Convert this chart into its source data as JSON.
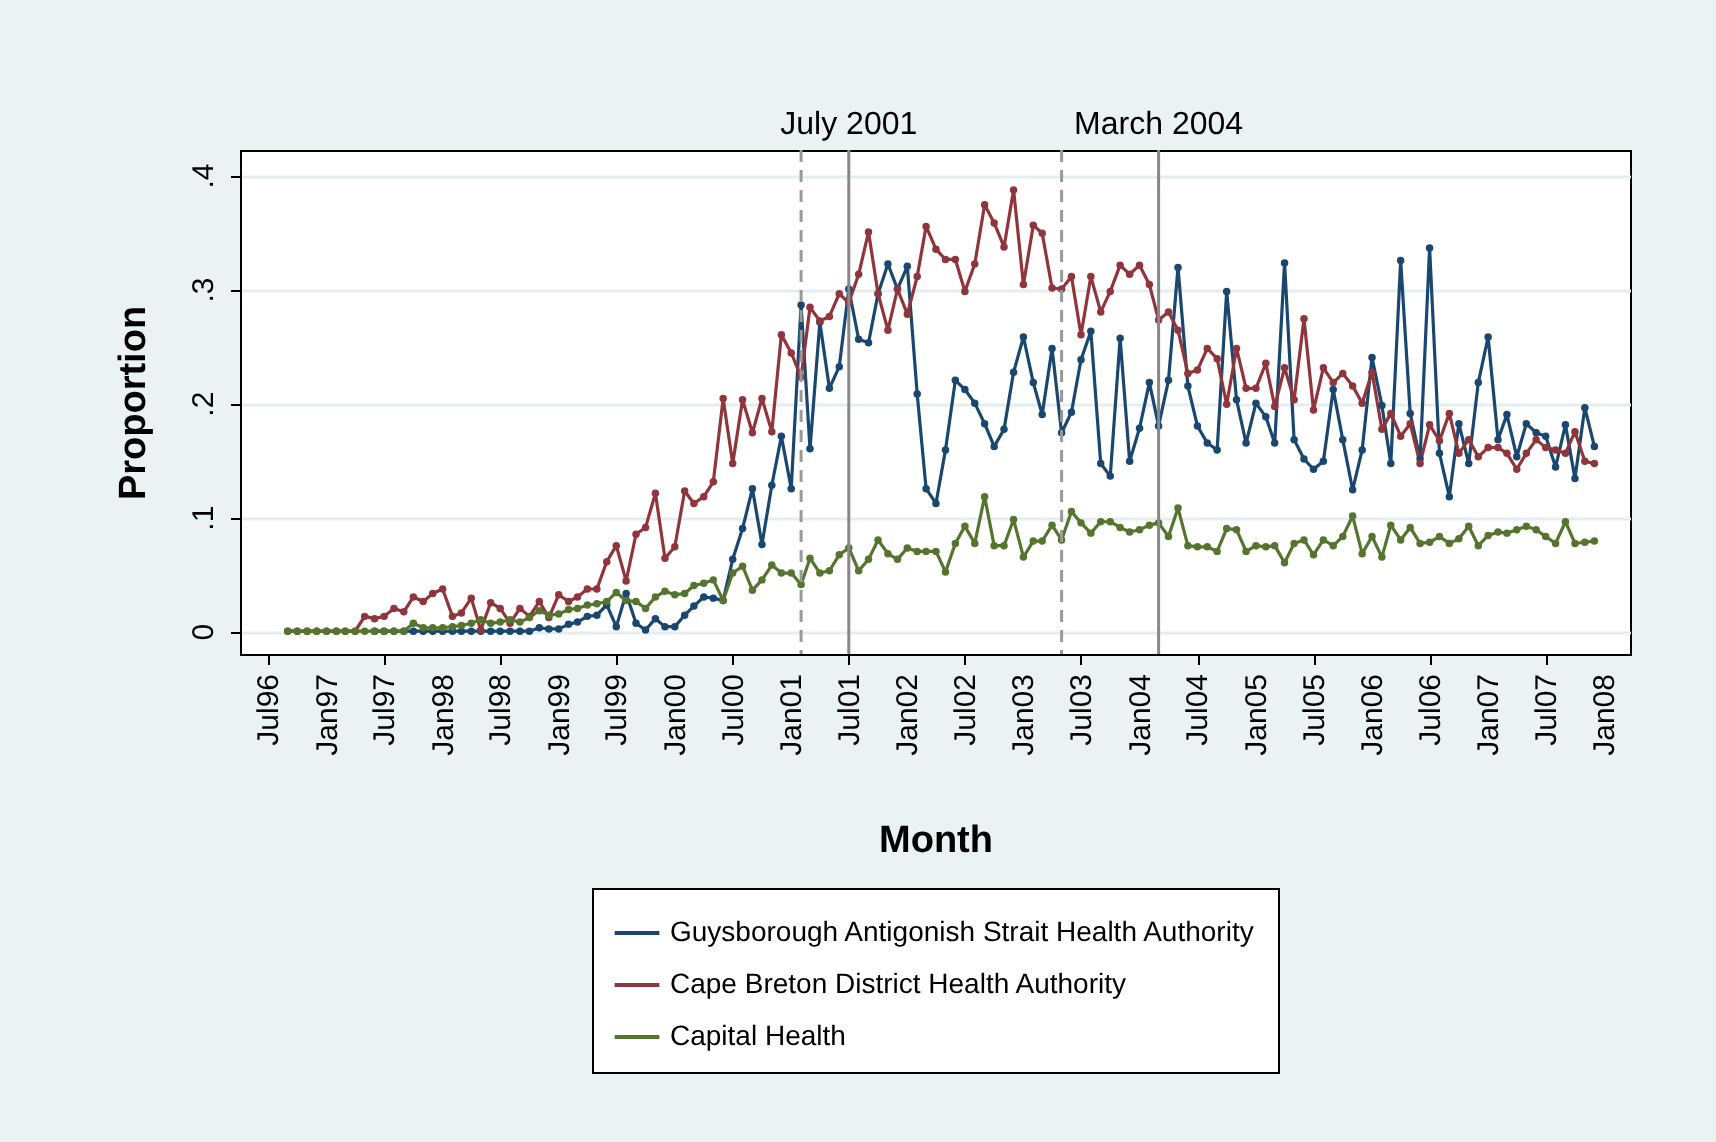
{
  "chart_data": {
    "type": "line",
    "xlabel": "Month",
    "ylabel": "Proportion",
    "x": [
      "1996-09",
      "1996-10",
      "1996-11",
      "1996-12",
      "1997-01",
      "1997-02",
      "1997-03",
      "1997-04",
      "1997-05",
      "1997-06",
      "1997-07",
      "1997-08",
      "1997-09",
      "1997-10",
      "1997-11",
      "1997-12",
      "1998-01",
      "1998-02",
      "1998-03",
      "1998-04",
      "1998-05",
      "1998-06",
      "1998-07",
      "1998-08",
      "1998-09",
      "1998-10",
      "1998-11",
      "1998-12",
      "1999-01",
      "1999-02",
      "1999-03",
      "1999-04",
      "1999-05",
      "1999-06",
      "1999-07",
      "1999-08",
      "1999-09",
      "1999-10",
      "1999-11",
      "1999-12",
      "2000-01",
      "2000-02",
      "2000-03",
      "2000-04",
      "2000-05",
      "2000-06",
      "2000-07",
      "2000-08",
      "2000-09",
      "2000-10",
      "2000-11",
      "2000-12",
      "2001-01",
      "2001-02",
      "2001-03",
      "2001-04",
      "2001-05",
      "2001-06",
      "2001-07",
      "2001-08",
      "2001-09",
      "2001-10",
      "2001-11",
      "2001-12",
      "2002-01",
      "2002-02",
      "2002-03",
      "2002-04",
      "2002-05",
      "2002-06",
      "2002-07",
      "2002-08",
      "2002-09",
      "2002-10",
      "2002-11",
      "2002-12",
      "2003-01",
      "2003-02",
      "2003-03",
      "2003-04",
      "2003-05",
      "2003-06",
      "2003-07",
      "2003-08",
      "2003-09",
      "2003-10",
      "2003-11",
      "2003-12",
      "2004-01",
      "2004-02",
      "2004-03",
      "2004-04",
      "2004-05",
      "2004-06",
      "2004-07",
      "2004-08",
      "2004-09",
      "2004-10",
      "2004-11",
      "2004-12",
      "2005-01",
      "2005-02",
      "2005-03",
      "2005-04",
      "2005-05",
      "2005-06",
      "2005-07",
      "2005-08",
      "2005-09",
      "2005-10",
      "2005-11",
      "2005-12",
      "2006-01",
      "2006-02",
      "2006-03",
      "2006-04",
      "2006-05",
      "2006-06",
      "2006-07",
      "2006-08",
      "2006-09",
      "2006-10",
      "2006-11",
      "2006-12",
      "2007-01",
      "2007-02",
      "2007-03",
      "2007-04",
      "2007-05",
      "2007-06",
      "2007-07",
      "2007-08",
      "2007-09",
      "2007-10",
      "2007-11",
      "2007-12"
    ],
    "series": [
      {
        "name": "Guysborough Antigonish Strait Health Authority",
        "color": "#1a476f",
        "values": [
          null,
          null,
          null,
          null,
          null,
          null,
          null,
          null,
          null,
          0,
          0,
          0,
          0,
          0,
          0,
          0,
          0,
          0,
          0,
          0,
          0,
          0,
          0,
          0,
          0,
          0,
          0.003,
          0.002,
          0.002,
          0.006,
          0.008,
          0.013,
          0.014,
          0.023,
          0.004,
          0.033,
          0.007,
          0.001,
          0.011,
          0.004,
          0.004,
          0.014,
          0.022,
          0.03,
          0.029,
          0.027,
          0.063,
          0.09,
          0.125,
          0.076,
          0.128,
          0.171,
          0.125,
          0.286,
          0.16,
          0.271,
          0.213,
          0.232,
          0.3,
          0.256,
          0.253,
          0.296,
          0.322,
          0.3,
          0.32,
          0.208,
          0.125,
          0.112,
          0.159,
          0.22,
          0.212,
          0.2,
          0.182,
          0.162,
          0.177,
          0.227,
          0.258,
          0.218,
          0.19,
          0.248,
          0.174,
          0.192,
          0.238,
          0.263,
          0.147,
          0.136,
          0.257,
          0.149,
          0.178,
          0.218,
          0.18,
          0.22,
          0.319,
          0.215,
          0.18,
          0.165,
          0.159,
          0.298,
          0.203,
          0.165,
          0.2,
          0.188,
          0.165,
          0.323,
          0.168,
          0.151,
          0.142,
          0.149,
          0.212,
          0.168,
          0.124,
          0.159,
          0.24,
          0.198,
          0.147,
          0.325,
          0.191,
          0.151,
          0.336,
          0.156,
          0.118,
          0.182,
          0.147,
          0.218,
          0.258,
          0.168,
          0.19,
          0.153,
          0.182,
          0.174,
          0.171,
          0.144,
          0.181,
          0.134,
          0.196,
          0.162
        ]
      },
      {
        "name": "Cape Breton District Health Authority",
        "color": "#90353b",
        "values": [
          0,
          0,
          0,
          0,
          0,
          0,
          0,
          0,
          0.013,
          0.011,
          0.013,
          0.02,
          0.017,
          0.03,
          0.026,
          0.033,
          0.037,
          0.013,
          0.016,
          0.029,
          0.001,
          0.025,
          0.02,
          0.007,
          0.02,
          0.013,
          0.026,
          0.012,
          0.032,
          0.026,
          0.03,
          0.037,
          0.037,
          0.061,
          0.075,
          0.044,
          0.085,
          0.091,
          0.121,
          0.064,
          0.074,
          0.123,
          0.112,
          0.118,
          0.131,
          0.204,
          0.147,
          0.203,
          0.174,
          0.204,
          0.175,
          0.26,
          0.244,
          0.223,
          0.284,
          0.272,
          0.276,
          0.296,
          0.288,
          0.313,
          0.35,
          0.296,
          0.264,
          0.3,
          0.278,
          0.311,
          0.355,
          0.335,
          0.326,
          0.326,
          0.298,
          0.322,
          0.374,
          0.358,
          0.337,
          0.387,
          0.304,
          0.356,
          0.349,
          0.301,
          0.3,
          0.311,
          0.26,
          0.311,
          0.28,
          0.298,
          0.321,
          0.313,
          0.321,
          0.304,
          0.273,
          0.28,
          0.264,
          0.226,
          0.229,
          0.248,
          0.239,
          0.199,
          0.248,
          0.213,
          0.213,
          0.235,
          0.197,
          0.231,
          0.203,
          0.274,
          0.194,
          0.231,
          0.218,
          0.226,
          0.215,
          0.2,
          0.227,
          0.177,
          0.191,
          0.171,
          0.182,
          0.147,
          0.181,
          0.167,
          0.191,
          0.156,
          0.168,
          0.153,
          0.161,
          0.161,
          0.156,
          0.142,
          0.156,
          0.168,
          0.161,
          0.159,
          0.156,
          0.175,
          0.149,
          0.147
        ]
      },
      {
        "name": "Capital Health",
        "color": "#55752f",
        "values": [
          0,
          0,
          0,
          0,
          0,
          0,
          0,
          0,
          0,
          0,
          0,
          0,
          0,
          0.007,
          0.003,
          0.003,
          0.003,
          0.004,
          0.005,
          0.007,
          0.01,
          0.007,
          0.008,
          0.01,
          0.008,
          0.012,
          0.018,
          0.014,
          0.015,
          0.019,
          0.02,
          0.023,
          0.024,
          0.026,
          0.034,
          0.027,
          0.026,
          0.02,
          0.03,
          0.035,
          0.032,
          0.033,
          0.04,
          0.042,
          0.045,
          0.027,
          0.051,
          0.057,
          0.036,
          0.045,
          0.058,
          0.051,
          0.051,
          0.041,
          0.064,
          0.051,
          0.053,
          0.067,
          0.073,
          0.053,
          0.063,
          0.08,
          0.068,
          0.063,
          0.073,
          0.07,
          0.07,
          0.07,
          0.052,
          0.077,
          0.092,
          0.077,
          0.118,
          0.075,
          0.075,
          0.098,
          0.065,
          0.079,
          0.079,
          0.093,
          0.08,
          0.105,
          0.095,
          0.086,
          0.096,
          0.096,
          0.091,
          0.087,
          0.089,
          0.093,
          0.095,
          0.083,
          0.108,
          0.075,
          0.074,
          0.074,
          0.07,
          0.09,
          0.089,
          0.07,
          0.075,
          0.074,
          0.075,
          0.06,
          0.077,
          0.08,
          0.067,
          0.08,
          0.075,
          0.083,
          0.101,
          0.068,
          0.083,
          0.065,
          0.093,
          0.08,
          0.091,
          0.077,
          0.078,
          0.083,
          0.077,
          0.081,
          0.092,
          0.075,
          0.084,
          0.087,
          0.086,
          0.089,
          0.092,
          0.089,
          0.083,
          0.077,
          0.096,
          0.077,
          0.078,
          0.079
        ]
      }
    ],
    "xlim": [
      "1996-04-04",
      "2008-03-22"
    ],
    "xticks": [
      {
        "value": "1996-07",
        "label": "Jul96"
      },
      {
        "value": "1997-01",
        "label": "Jan97"
      },
      {
        "value": "1997-07",
        "label": "Jul97"
      },
      {
        "value": "1998-01",
        "label": "Jan98"
      },
      {
        "value": "1998-07",
        "label": "Jul98"
      },
      {
        "value": "1999-01",
        "label": "Jan99"
      },
      {
        "value": "1999-07",
        "label": "Jul99"
      },
      {
        "value": "2000-01",
        "label": "Jan00"
      },
      {
        "value": "2000-07",
        "label": "Jul00"
      },
      {
        "value": "2001-01",
        "label": "Jan01"
      },
      {
        "value": "2001-07",
        "label": "Jul01"
      },
      {
        "value": "2002-01",
        "label": "Jan02"
      },
      {
        "value": "2002-07",
        "label": "Jul02"
      },
      {
        "value": "2003-01",
        "label": "Jan03"
      },
      {
        "value": "2003-07",
        "label": "Jul03"
      },
      {
        "value": "2004-01",
        "label": "Jan04"
      },
      {
        "value": "2004-07",
        "label": "Jul04"
      },
      {
        "value": "2005-01",
        "label": "Jan05"
      },
      {
        "value": "2005-07",
        "label": "Jul05"
      },
      {
        "value": "2006-01",
        "label": "Jan06"
      },
      {
        "value": "2006-07",
        "label": "Jul06"
      },
      {
        "value": "2007-01",
        "label": "Jan07"
      },
      {
        "value": "2007-07",
        "label": "Jul07"
      },
      {
        "value": "2008-01",
        "label": "Jan08"
      }
    ],
    "ylim": [
      -0.02,
      0.422
    ],
    "yticks": [
      0,
      {
        "value": 0.1,
        "label": ".1"
      },
      {
        "value": 0.2,
        "label": ".2"
      },
      {
        "value": 0.3,
        "label": ".3"
      },
      {
        "value": 0.4,
        "label": ".4"
      }
    ],
    "grid": "y",
    "legend": "bottom",
    "marker": "circle",
    "line_style": "solid",
    "ref_lines": [
      {
        "axis": "x",
        "value": "2001-02",
        "label": null,
        "color": "#999999",
        "line_style": "dashed"
      },
      {
        "axis": "x",
        "value": "2001-07",
        "label": "July 2001",
        "color": "#888888",
        "line_style": "solid"
      },
      {
        "axis": "x",
        "value": "2003-05",
        "label": null,
        "color": "#999999",
        "line_style": "dashed"
      },
      {
        "axis": "x",
        "value": "2004-03",
        "label": "March 2004",
        "color": "#888888",
        "line_style": "solid"
      }
    ]
  }
}
